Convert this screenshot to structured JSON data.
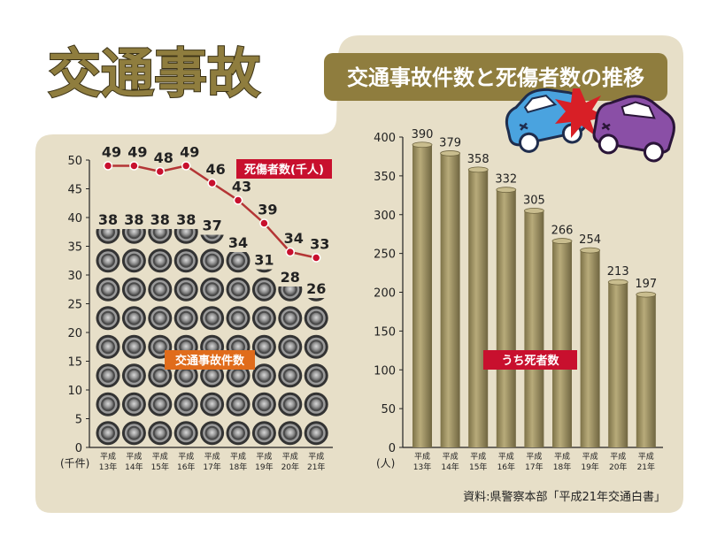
{
  "header": {
    "title": "交通事故",
    "subtitle": "交通事故件数と死傷者数の推移"
  },
  "source": "資料:県警察本部「平成21年交通白書」",
  "colors": {
    "background": "#e7dfc8",
    "title_fill": "#8f7d3e",
    "banner": "#8f7d3e",
    "line": "#b43535",
    "bar": "#9f9363",
    "label_red": "#c8102e",
    "label_orange": "#e06c1b",
    "tire": "#8d8d8d"
  },
  "chart_data": [
    {
      "type": "line",
      "categories": [
        [
          "平成",
          "13年"
        ],
        [
          "平成",
          "14年"
        ],
        [
          "平成",
          "15年"
        ],
        [
          "平成",
          "16年"
        ],
        [
          "平成",
          "17年"
        ],
        [
          "平成",
          "18年"
        ],
        [
          "平成",
          "19年"
        ],
        [
          "平成",
          "20年"
        ],
        [
          "平成",
          "21年"
        ]
      ],
      "unit": "(千件)",
      "ylim": [
        0,
        50
      ],
      "yticks": [
        0,
        5,
        10,
        15,
        20,
        25,
        30,
        35,
        40,
        45,
        50
      ],
      "series": [
        {
          "name": "死傷者数(千人)",
          "style": "line",
          "values": [
            49,
            49,
            48,
            49,
            46,
            43,
            39,
            34,
            33
          ]
        },
        {
          "name": "交通事故件数",
          "style": "tire-stack",
          "values": [
            38,
            38,
            38,
            38,
            37,
            34,
            31,
            28,
            26
          ]
        }
      ],
      "grid": false
    },
    {
      "type": "bar",
      "categories": [
        [
          "平成",
          "13年"
        ],
        [
          "平成",
          "14年"
        ],
        [
          "平成",
          "15年"
        ],
        [
          "平成",
          "16年"
        ],
        [
          "平成",
          "17年"
        ],
        [
          "平成",
          "18年"
        ],
        [
          "平成",
          "19年"
        ],
        [
          "平成",
          "20年"
        ],
        [
          "平成",
          "21年"
        ]
      ],
      "unit": "(人)",
      "ylim": [
        0,
        400
      ],
      "yticks": [
        0,
        50,
        100,
        150,
        200,
        250,
        300,
        350,
        400
      ],
      "series": [
        {
          "name": "うち死者数",
          "values": [
            390,
            379,
            358,
            332,
            305,
            266,
            254,
            213,
            197
          ]
        }
      ],
      "grid": false
    }
  ]
}
